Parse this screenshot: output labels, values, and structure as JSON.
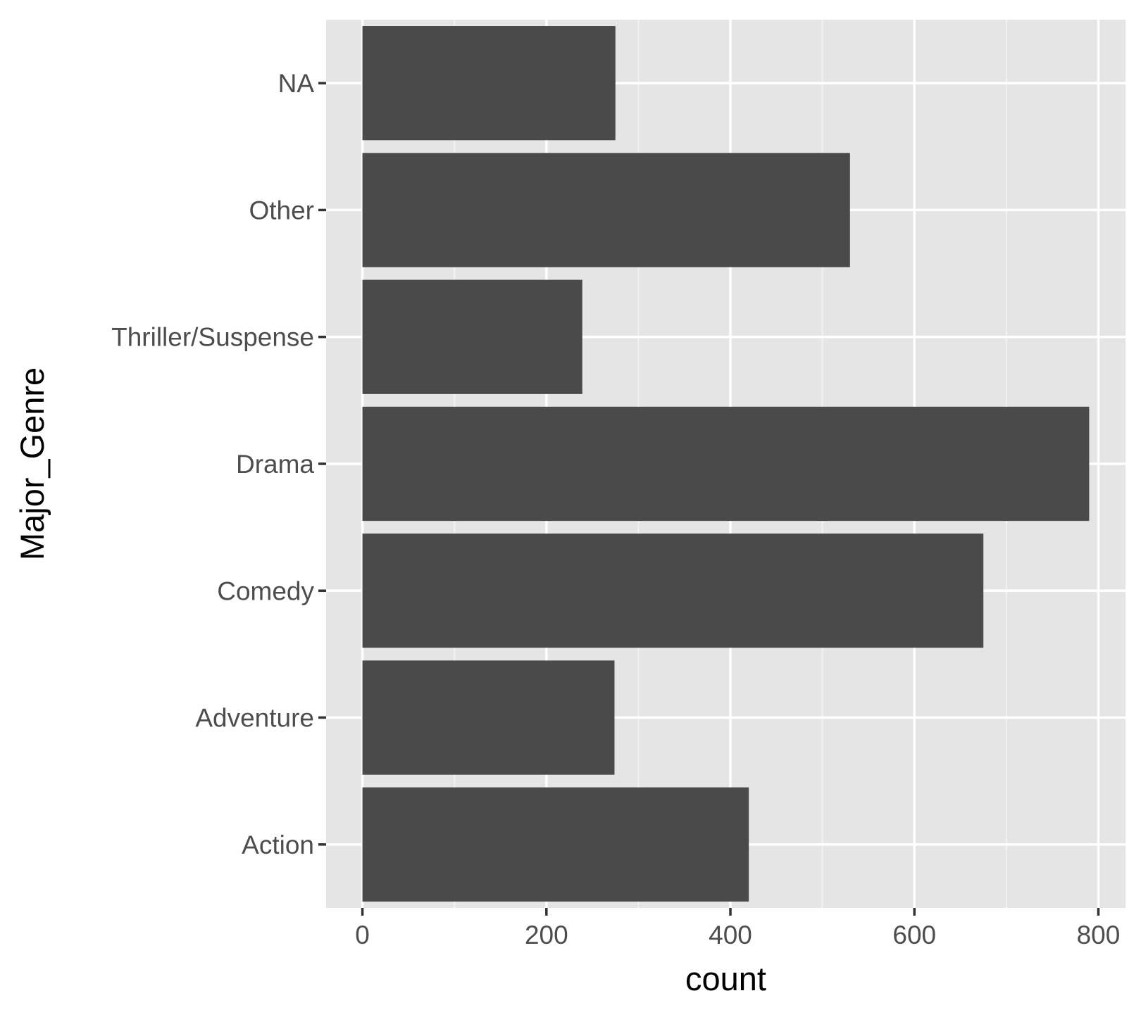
{
  "chart_data": {
    "type": "bar",
    "orientation": "horizontal",
    "categories": [
      "Action",
      "Adventure",
      "Comedy",
      "Drama",
      "Thriller/Suspense",
      "Other",
      "NA"
    ],
    "values": [
      420,
      274,
      675,
      790,
      239,
      530,
      275
    ],
    "xlabel": "count",
    "ylabel": "Major_Genre",
    "x_ticks": [
      0,
      200,
      400,
      600,
      800
    ],
    "xlim": [
      -39.5,
      829.5
    ],
    "grid": true,
    "legend": "none",
    "colors": {
      "bar": "#4a4a4a",
      "panel_background": "#e5e5e5",
      "grid_major": "#ffffff",
      "grid_minor": "#f2f2f2",
      "tick_text": "#4d4d4d",
      "axis_title": "#000000"
    }
  }
}
